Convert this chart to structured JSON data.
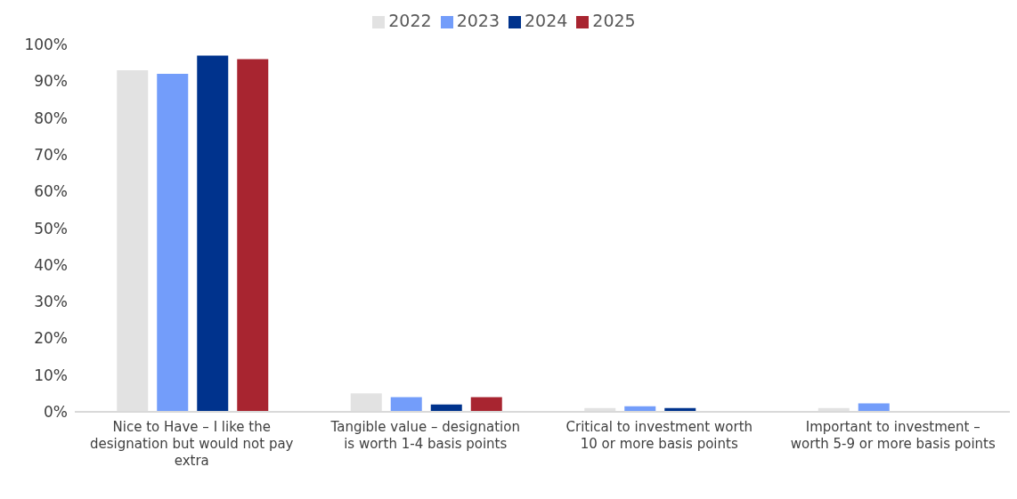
{
  "chart_data": {
    "type": "bar",
    "categories": [
      "Nice to Have – I like the designation but would not pay extra",
      "Tangible value – designation is worth 1-4 basis points",
      "Critical to investment worth 10 or more basis points",
      "Important to investment – worth 5-9 or more basis points"
    ],
    "series": [
      {
        "name": "2022",
        "color": "#e2e2e2",
        "values": [
          93,
          5,
          1,
          1
        ]
      },
      {
        "name": "2023",
        "color": "#739dfa",
        "values": [
          92,
          4,
          1.5,
          2.3
        ]
      },
      {
        "name": "2024",
        "color": "#00338d",
        "values": [
          97,
          2,
          1,
          0
        ]
      },
      {
        "name": "2025",
        "color": "#a82530",
        "values": [
          96,
          4,
          0,
          0
        ]
      }
    ],
    "ylim": [
      0,
      100
    ],
    "yticks": [
      {
        "value": 0,
        "label": "0%"
      },
      {
        "value": 10,
        "label": "10%"
      },
      {
        "value": 20,
        "label": "20%"
      },
      {
        "value": 30,
        "label": "30%"
      },
      {
        "value": 40,
        "label": "40%"
      },
      {
        "value": 50,
        "label": "50%"
      },
      {
        "value": 60,
        "label": "60%"
      },
      {
        "value": 70,
        "label": "70%"
      },
      {
        "value": 80,
        "label": "80%"
      },
      {
        "value": 90,
        "label": "90%"
      },
      {
        "value": 100,
        "label": "100%"
      }
    ],
    "grid": false,
    "legend": "top"
  }
}
